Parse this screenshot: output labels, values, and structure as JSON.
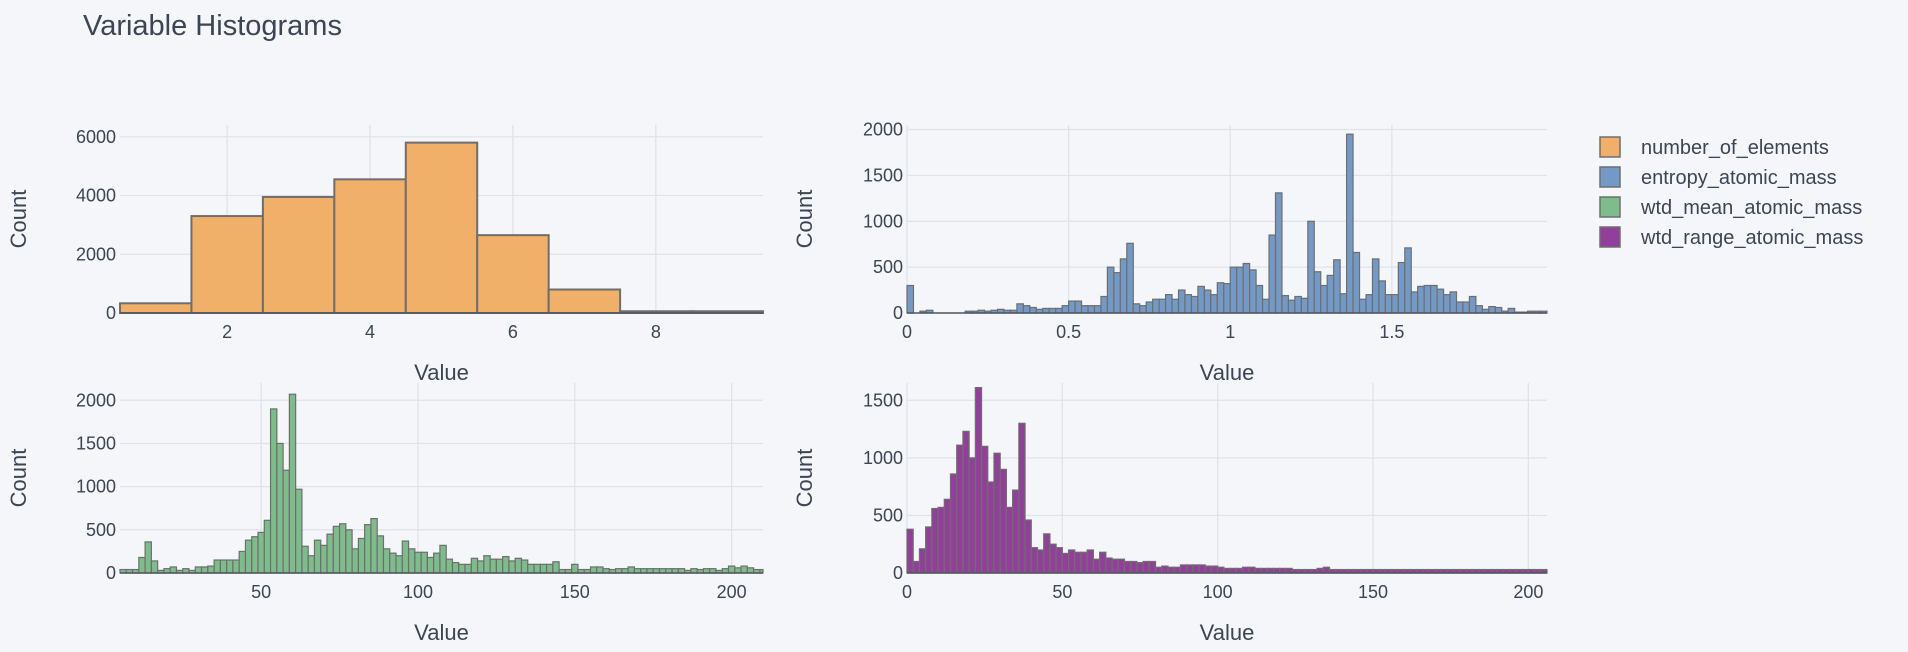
{
  "title": "Variable Histograms",
  "legend": {
    "placement": "top-right",
    "items": [
      {
        "name": "number_of_elements",
        "color": "#f0b06a"
      },
      {
        "name": "entropy_atomic_mass",
        "color": "#7399c6"
      },
      {
        "name": "wtd_mean_atomic_mass",
        "color": "#7fbc8c"
      },
      {
        "name": "wtd_range_atomic_mass",
        "color": "#923f9a"
      }
    ]
  },
  "chart_data": [
    {
      "type": "bar",
      "series_name": "number_of_elements",
      "color": "#f0b06a",
      "xlabel": "Value",
      "ylabel": "Count",
      "grid": true,
      "xlim": [
        0.5,
        9.5
      ],
      "ylim": [
        0,
        6400
      ],
      "xticks": [
        2,
        4,
        6,
        8
      ],
      "yticks": [
        0,
        2000,
        4000,
        6000
      ],
      "bin_start": 0.5,
      "bin_width": 1,
      "values": [
        330,
        3300,
        3950,
        4550,
        5800,
        2650,
        800,
        60,
        60
      ]
    },
    {
      "type": "bar",
      "series_name": "entropy_atomic_mass",
      "color": "#7399c6",
      "xlabel": "Value",
      "ylabel": "Count",
      "grid": true,
      "xlim": [
        0,
        1.98
      ],
      "ylim": [
        0,
        2050
      ],
      "xticks": [
        0,
        0.5,
        1,
        1.5
      ],
      "xtick_labels": [
        "0",
        "0.5",
        "1",
        "1.5"
      ],
      "yticks": [
        0,
        500,
        1000,
        1500,
        2000
      ],
      "bin_start": 0,
      "bin_width": 0.02,
      "values": [
        300,
        0,
        20,
        30,
        0,
        0,
        0,
        0,
        0,
        20,
        20,
        30,
        20,
        30,
        40,
        30,
        30,
        100,
        80,
        60,
        40,
        50,
        50,
        50,
        80,
        130,
        130,
        80,
        80,
        80,
        180,
        500,
        440,
        590,
        760,
        100,
        80,
        120,
        150,
        150,
        200,
        150,
        250,
        200,
        180,
        290,
        250,
        200,
        330,
        320,
        500,
        500,
        540,
        470,
        300,
        150,
        850,
        1310,
        190,
        140,
        180,
        160,
        1000,
        450,
        300,
        410,
        580,
        210,
        1950,
        660,
        150,
        200,
        590,
        350,
        200,
        200,
        550,
        710,
        230,
        290,
        300,
        300,
        260,
        200,
        230,
        120,
        120,
        180,
        80,
        40,
        70,
        60,
        20,
        50,
        10,
        10,
        20,
        20,
        20,
        20
      ]
    },
    {
      "type": "bar",
      "series_name": "wtd_mean_atomic_mass",
      "color": "#7fbc8c",
      "xlabel": "Value",
      "ylabel": "Count",
      "grid": true,
      "xlim": [
        5,
        210
      ],
      "ylim": [
        0,
        2200
      ],
      "xticks": [
        50,
        100,
        150,
        200
      ],
      "yticks": [
        0,
        500,
        1000,
        1500,
        2000
      ],
      "bin_start": 5,
      "bin_width": 2,
      "values": [
        40,
        40,
        40,
        180,
        360,
        140,
        30,
        50,
        70,
        30,
        50,
        30,
        70,
        70,
        80,
        150,
        150,
        150,
        150,
        250,
        380,
        420,
        470,
        610,
        1900,
        1500,
        1190,
        2070,
        970,
        310,
        200,
        380,
        320,
        450,
        540,
        570,
        500,
        280,
        400,
        560,
        630,
        430,
        280,
        230,
        200,
        370,
        280,
        240,
        240,
        180,
        230,
        320,
        160,
        120,
        100,
        100,
        170,
        140,
        200,
        160,
        160,
        190,
        140,
        170,
        150,
        100,
        100,
        100,
        100,
        130,
        40,
        40,
        100,
        40,
        40,
        70,
        70,
        50,
        40,
        50,
        50,
        70,
        50,
        50,
        50,
        50,
        50,
        50,
        50,
        50,
        30,
        50,
        40,
        50,
        50,
        30,
        50,
        80,
        60,
        80,
        60,
        40,
        40,
        60,
        40,
        60,
        50
      ]
    },
    {
      "type": "bar",
      "series_name": "wtd_range_atomic_mass",
      "color": "#923f9a",
      "xlabel": "Value",
      "ylabel": "Count",
      "grid": true,
      "xlim": [
        0,
        206
      ],
      "ylim": [
        0,
        1650
      ],
      "xticks": [
        0,
        50,
        100,
        150,
        200
      ],
      "yticks": [
        0,
        500,
        1000,
        1500
      ],
      "bin_start": 0,
      "bin_width": 2,
      "values": [
        380,
        100,
        210,
        400,
        560,
        570,
        640,
        860,
        1110,
        1230,
        1000,
        1610,
        1100,
        790,
        1040,
        900,
        570,
        720,
        1300,
        460,
        220,
        200,
        340,
        250,
        220,
        170,
        200,
        180,
        180,
        200,
        120,
        180,
        130,
        120,
        120,
        100,
        100,
        90,
        100,
        100,
        50,
        60,
        50,
        50,
        70,
        70,
        70,
        70,
        60,
        60,
        50,
        40,
        40,
        40,
        50,
        50,
        40,
        40,
        40,
        40,
        40,
        40,
        30,
        30,
        30,
        30,
        40,
        50,
        30,
        30,
        30,
        30,
        30,
        30,
        30,
        30,
        30,
        30,
        30,
        30,
        30,
        30,
        30,
        30,
        30,
        30,
        30,
        30,
        30,
        30,
        30,
        30,
        30,
        30,
        30,
        30,
        30,
        30,
        30,
        30,
        30,
        30,
        30
      ]
    }
  ]
}
